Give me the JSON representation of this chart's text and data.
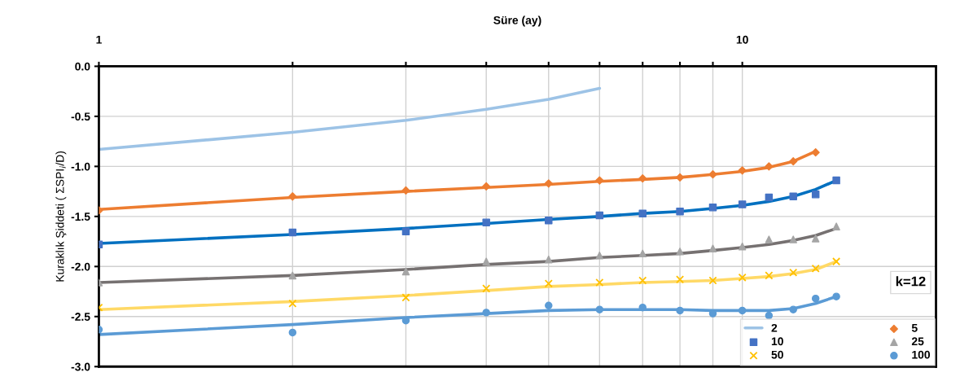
{
  "chart_data": {
    "type": "scatter",
    "xlabel": "Süre (ay)",
    "ylabel": "Kuraklık Şiddeti ( ΣSPI$_{i}$/D)",
    "log": "x",
    "xlim": [
      1,
      20
    ],
    "ylim": [
      -3.0,
      0.0
    ],
    "xticks": [
      {
        "value": 1,
        "label": "1"
      },
      {
        "value": 2,
        "label": null
      },
      {
        "value": 3,
        "label": null
      },
      {
        "value": 4,
        "label": null
      },
      {
        "value": 5,
        "label": null
      },
      {
        "value": 6,
        "label": null
      },
      {
        "value": 7,
        "label": null
      },
      {
        "value": 8,
        "label": null
      },
      {
        "value": 9,
        "label": null
      },
      {
        "value": 10,
        "label": "10"
      }
    ],
    "yticks": [
      {
        "value": -3.0,
        "label": "-3.0"
      },
      {
        "value": -2.5,
        "label": "-2.5"
      },
      {
        "value": -2.0,
        "label": "-2.0"
      },
      {
        "value": -1.5,
        "label": "-1.5"
      },
      {
        "value": -1.0,
        "label": "-1.0"
      },
      {
        "value": -0.5,
        "label": "-0.5"
      },
      {
        "value": 0.0,
        "label": "0.0"
      }
    ],
    "grid": true,
    "legend": "bottom right",
    "annotations": [
      "k=12"
    ],
    "series": [
      {
        "name": "2",
        "type": "line",
        "color": "#9dc3e6",
        "x": [
          1,
          2,
          3,
          4,
          5,
          6
        ],
        "values": [
          -0.83,
          -0.66,
          -0.54,
          -0.43,
          -0.33,
          -0.22
        ]
      },
      {
        "name": "5",
        "marker": "diamond",
        "color": "#ed7d31",
        "x": [
          1,
          2,
          3,
          4,
          5,
          6,
          7,
          8,
          9,
          10,
          11,
          12,
          13
        ],
        "values": [
          -1.44,
          -1.3,
          -1.24,
          -1.2,
          -1.17,
          -1.14,
          -1.12,
          -1.11,
          -1.08,
          -1.04,
          -1.0,
          -0.95,
          -0.86
        ]
      },
      {
        "name": "10",
        "marker": "square",
        "color": "#4472c4",
        "x": [
          1,
          2,
          3,
          4,
          5,
          6,
          7,
          8,
          9,
          10,
          11,
          12,
          13,
          14
        ],
        "values": [
          -1.78,
          -1.66,
          -1.65,
          -1.56,
          -1.54,
          -1.49,
          -1.47,
          -1.45,
          -1.41,
          -1.38,
          -1.31,
          -1.3,
          -1.28,
          -1.14
        ]
      },
      {
        "name": "25",
        "marker": "triangle",
        "color": "#a5a5a5",
        "x": [
          1,
          2,
          3,
          4,
          5,
          6,
          7,
          8,
          9,
          10,
          11,
          12,
          13,
          14
        ],
        "values": [
          -2.16,
          -2.09,
          -2.05,
          -1.95,
          -1.93,
          -1.89,
          -1.87,
          -1.85,
          -1.82,
          -1.8,
          -1.73,
          -1.73,
          -1.72,
          -1.6
        ]
      },
      {
        "name": "50",
        "marker": "cross",
        "color": "#ffc000",
        "x": [
          1,
          2,
          3,
          4,
          5,
          6,
          7,
          8,
          9,
          10,
          11,
          12,
          13,
          14
        ],
        "values": [
          -2.41,
          -2.37,
          -2.31,
          -2.22,
          -2.17,
          -2.16,
          -2.14,
          -2.13,
          -2.14,
          -2.11,
          -2.09,
          -2.06,
          -2.02,
          -1.95
        ]
      },
      {
        "name": "100",
        "marker": "circle",
        "color": "#5b9bd5",
        "x": [
          1,
          2,
          3,
          4,
          5,
          6,
          7,
          8,
          9,
          10,
          11,
          12,
          13,
          14
        ],
        "values": [
          -2.63,
          -2.66,
          -2.54,
          -2.46,
          -2.39,
          -2.43,
          -2.41,
          -2.44,
          -2.47,
          -2.44,
          -2.49,
          -2.43,
          -2.32,
          -2.3
        ]
      },
      {
        "type": "line",
        "color": "#ed7d31",
        "x": [
          1,
          2,
          3,
          4,
          5,
          6,
          7,
          8,
          9,
          10,
          11,
          12,
          13
        ],
        "values": [
          -1.43,
          -1.31,
          -1.25,
          -1.21,
          -1.18,
          -1.15,
          -1.13,
          -1.11,
          -1.08,
          -1.05,
          -1.01,
          -0.95,
          -0.85
        ]
      },
      {
        "type": "line",
        "color": "#0070c0",
        "x": [
          1,
          2,
          3,
          4,
          5,
          6,
          7,
          8,
          9,
          10,
          11,
          12,
          13,
          14
        ],
        "values": [
          -1.77,
          -1.68,
          -1.62,
          -1.57,
          -1.53,
          -1.5,
          -1.47,
          -1.45,
          -1.42,
          -1.39,
          -1.35,
          -1.3,
          -1.23,
          -1.14
        ]
      },
      {
        "type": "line",
        "color": "#767171",
        "x": [
          1,
          2,
          3,
          4,
          5,
          6,
          7,
          8,
          9,
          10,
          11,
          12,
          13,
          14
        ],
        "values": [
          -2.16,
          -2.09,
          -2.03,
          -1.98,
          -1.95,
          -1.91,
          -1.89,
          -1.87,
          -1.84,
          -1.81,
          -1.78,
          -1.74,
          -1.69,
          -1.62
        ]
      },
      {
        "type": "line",
        "color": "#ffd966",
        "x": [
          1,
          2,
          3,
          4,
          5,
          6,
          7,
          8,
          9,
          10,
          11,
          12,
          13,
          14
        ],
        "values": [
          -2.43,
          -2.35,
          -2.29,
          -2.24,
          -2.2,
          -2.18,
          -2.16,
          -2.15,
          -2.14,
          -2.12,
          -2.1,
          -2.07,
          -2.03,
          -1.95
        ]
      },
      {
        "type": "line",
        "color": "#5b9bd5",
        "x": [
          1,
          2,
          3,
          4,
          5,
          6,
          7,
          8,
          9,
          10,
          11,
          12,
          13,
          14
        ],
        "values": [
          -2.68,
          -2.58,
          -2.51,
          -2.47,
          -2.44,
          -2.43,
          -2.43,
          -2.43,
          -2.44,
          -2.44,
          -2.44,
          -2.42,
          -2.37,
          -2.3
        ]
      }
    ]
  }
}
